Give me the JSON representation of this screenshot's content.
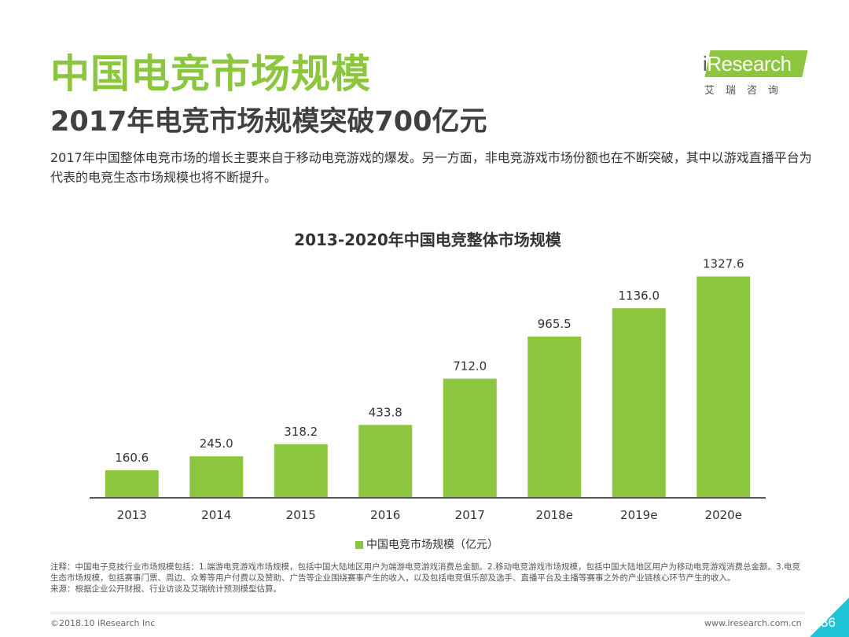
{
  "header": {
    "title": "中国电竞市场规模",
    "subtitle": "2017年电竞市场规模突破700亿元",
    "description": "2017年中国整体电竞市场的增长主要来自于移动电竞游戏的爆发。另一方面，非电竞游戏市场份额也在不断突破，其中以游戏直播平台为代表的电竞生态市场规模也将不断提升。"
  },
  "logo": {
    "name_i": "i",
    "name_rest": "Research",
    "chinese": "艾瑞咨询"
  },
  "chart_data": {
    "type": "bar",
    "title": "2013-2020年中国电竞整体市场规模",
    "categories": [
      "2013",
      "2014",
      "2015",
      "2016",
      "2017",
      "2018e",
      "2019e",
      "2020e"
    ],
    "series": [
      {
        "name": "中国电竞市场规模（亿元）",
        "values": [
          160.6,
          245.0,
          318.2,
          433.8,
          712.0,
          965.5,
          1136.0,
          1327.6
        ]
      }
    ],
    "value_labels": [
      "160.6",
      "245.0",
      "318.2",
      "433.8",
      "712.0",
      "965.5",
      "1136.0",
      "1327.6"
    ],
    "ylim": [
      0,
      1420
    ],
    "xlabel": "",
    "ylabel": "",
    "grid": false,
    "legend": "bottom-center",
    "color": "#8cc63e"
  },
  "notes": {
    "line1": "注释：中国电子竞技行业市场规模包括：1.端游电竞游戏市场规模，包括中国大陆地区用户为端游电竞游戏消费总金额。2.移动电竞游戏市场规模，包括中国大陆地区用户为移动电竞游戏消费总金额。3.电竞生态市场规模，包括赛事门票、周边、众筹等用户付费以及赞助、广告等企业围绕赛事产生的收入，以及包括电竞俱乐部及选手、直播平台及主播等赛事之外的产业链核心环节产生的收入。",
    "line2": "来源：根据企业公开财报、行业访谈及艾瑞统计预测模型估算。"
  },
  "footer": {
    "copyright": "©2018.10 iResearch Inc",
    "website": "www.iresearch.com.cn",
    "page": "36"
  }
}
